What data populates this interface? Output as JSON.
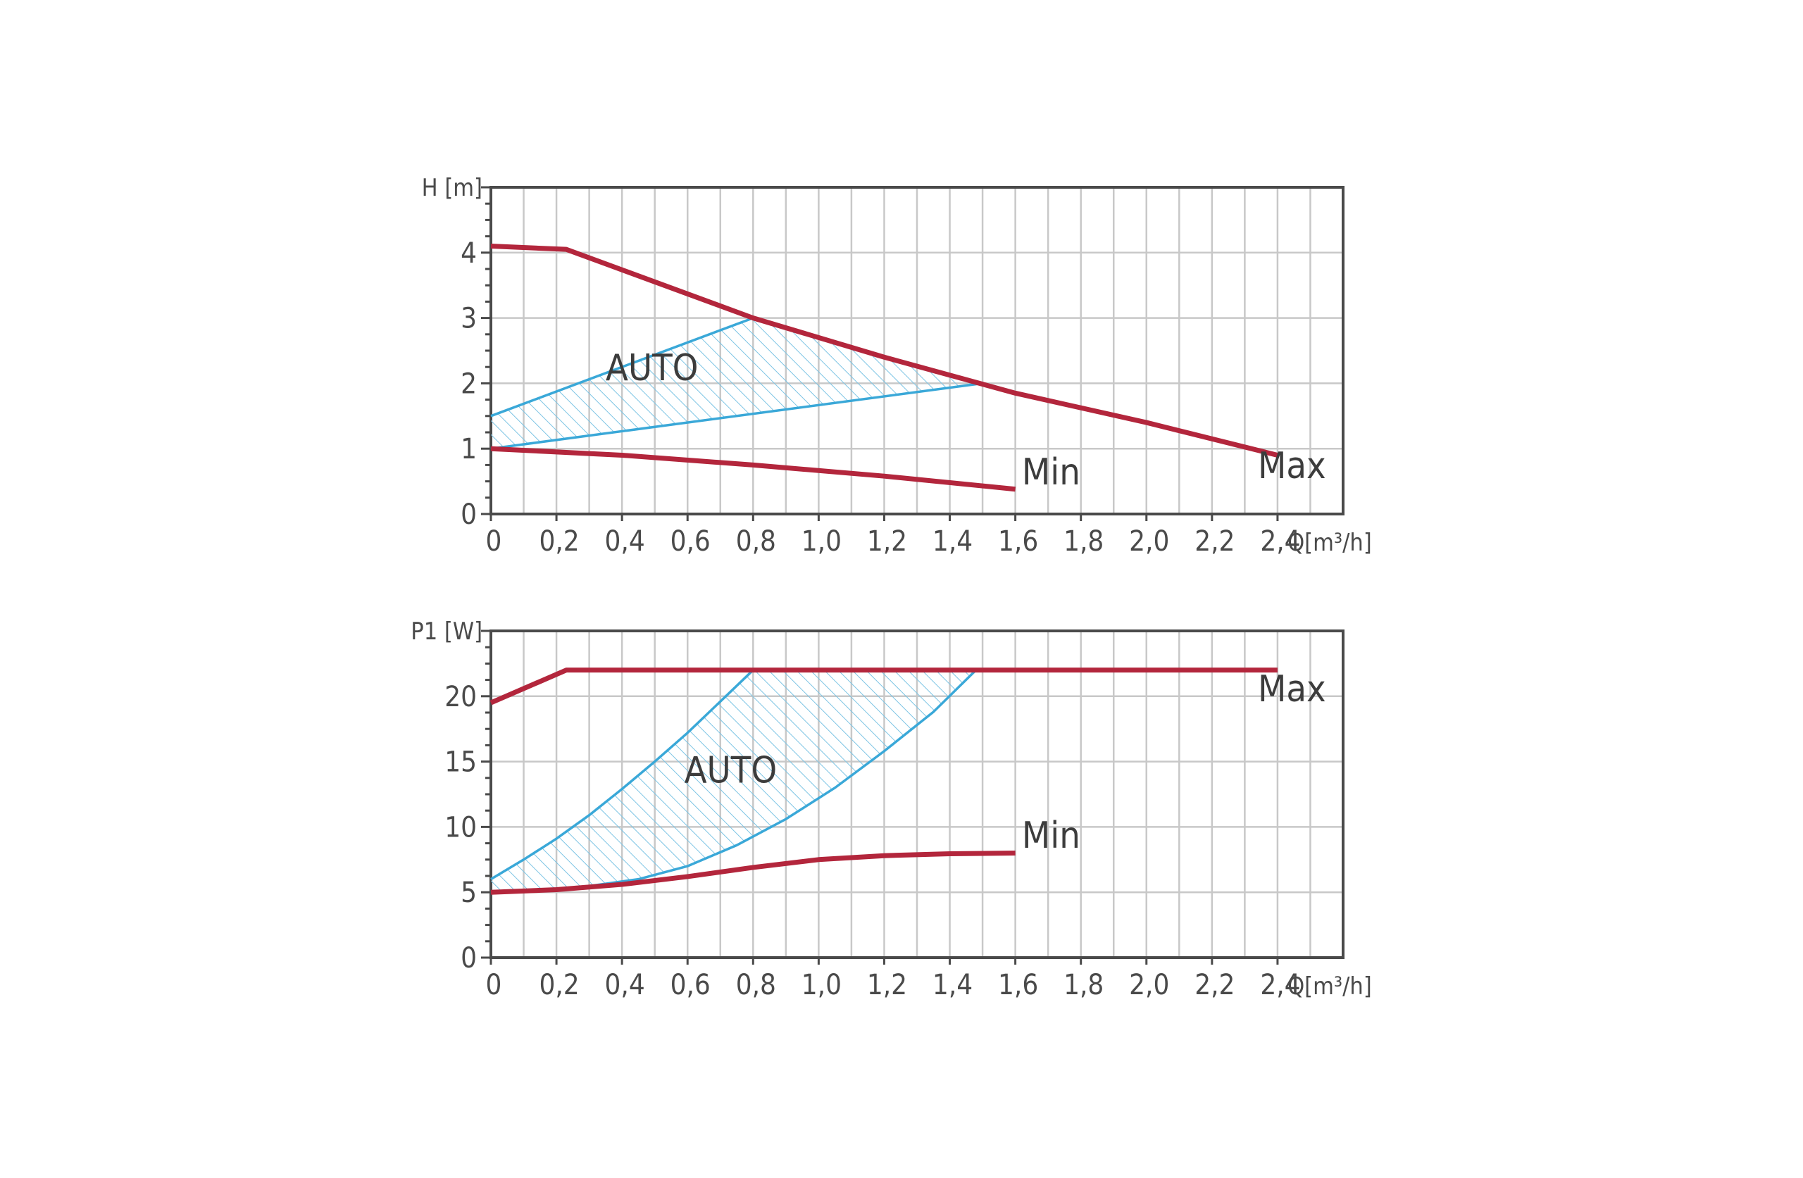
{
  "chart_data": [
    {
      "type": "line",
      "ylabel": "H [m]",
      "xlabel": "Q[m³/h]",
      "x_ticks": [
        "0",
        "0,2",
        "0,4",
        "0,6",
        "0,8",
        "1,0",
        "1,2",
        "1,4",
        "1,6",
        "1,8",
        "2,0",
        "2,2",
        "2,4"
      ],
      "y_ticks": [
        "0",
        "1",
        "2",
        "3",
        "4"
      ],
      "xlim": [
        0,
        2.6
      ],
      "ylim": [
        0,
        5
      ],
      "grid": true,
      "series": [
        {
          "name": "Max",
          "x": [
            0,
            0.23,
            0.8,
            1.2,
            1.6,
            2.0,
            2.4
          ],
          "y": [
            4.1,
            4.05,
            3.0,
            2.4,
            1.85,
            1.4,
            0.9
          ]
        },
        {
          "name": "Min",
          "x": [
            0,
            0.4,
            0.8,
            1.2,
            1.6
          ],
          "y": [
            1.0,
            0.9,
            0.75,
            0.58,
            0.38
          ]
        },
        {
          "name": "AUTO",
          "region": true,
          "upper": {
            "x": [
              0,
              0.8
            ],
            "y": [
              1.5,
              3.0
            ]
          },
          "lower": {
            "x": [
              0,
              1.5
            ],
            "y": [
              1.0,
              2.0
            ]
          }
        }
      ],
      "annotations": [
        "AUTO",
        "Min",
        "Max"
      ]
    },
    {
      "type": "line",
      "ylabel": "P1 [W]",
      "xlabel": "Q[m³/h]",
      "x_ticks": [
        "0",
        "0,2",
        "0,4",
        "0,6",
        "0,8",
        "1,0",
        "1,2",
        "1,4",
        "1,6",
        "1,8",
        "2,0",
        "2,2",
        "2,4"
      ],
      "y_ticks": [
        "0",
        "5",
        "10",
        "15",
        "20"
      ],
      "xlim": [
        0,
        2.6
      ],
      "ylim": [
        0,
        25
      ],
      "grid": true,
      "series": [
        {
          "name": "Max",
          "x": [
            0,
            0.23,
            2.4
          ],
          "y": [
            19.5,
            22,
            22
          ]
        },
        {
          "name": "Min",
          "x": [
            0,
            0.2,
            0.4,
            0.6,
            0.8,
            1.0,
            1.2,
            1.4,
            1.6
          ],
          "y": [
            5.0,
            5.2,
            5.6,
            6.2,
            6.9,
            7.5,
            7.8,
            7.95,
            8.0
          ]
        },
        {
          "name": "AUTO",
          "region": true,
          "upper": {
            "x": [
              0,
              0.1,
              0.2,
              0.3,
              0.4,
              0.5,
              0.6,
              0.7,
              0.8
            ],
            "y": [
              6.0,
              7.5,
              9.1,
              10.9,
              12.9,
              15.0,
              17.2,
              19.6,
              22.0
            ]
          },
          "lower": {
            "x": [
              0,
              0.25,
              0.45,
              0.6,
              0.75,
              0.9,
              1.05,
              1.2,
              1.35,
              1.48
            ],
            "y": [
              5.0,
              5.3,
              6.0,
              7.0,
              8.6,
              10.6,
              13.0,
              15.8,
              18.8,
              22.0
            ]
          }
        }
      ],
      "annotations": [
        "AUTO",
        "Min",
        "Max"
      ]
    }
  ],
  "colors": {
    "max_min": "#b3263c",
    "auto": "#3aa8d8",
    "auto_hatch": "#7cc4e4",
    "grid": "#c8c8c8",
    "axis": "#4a4a4a"
  }
}
